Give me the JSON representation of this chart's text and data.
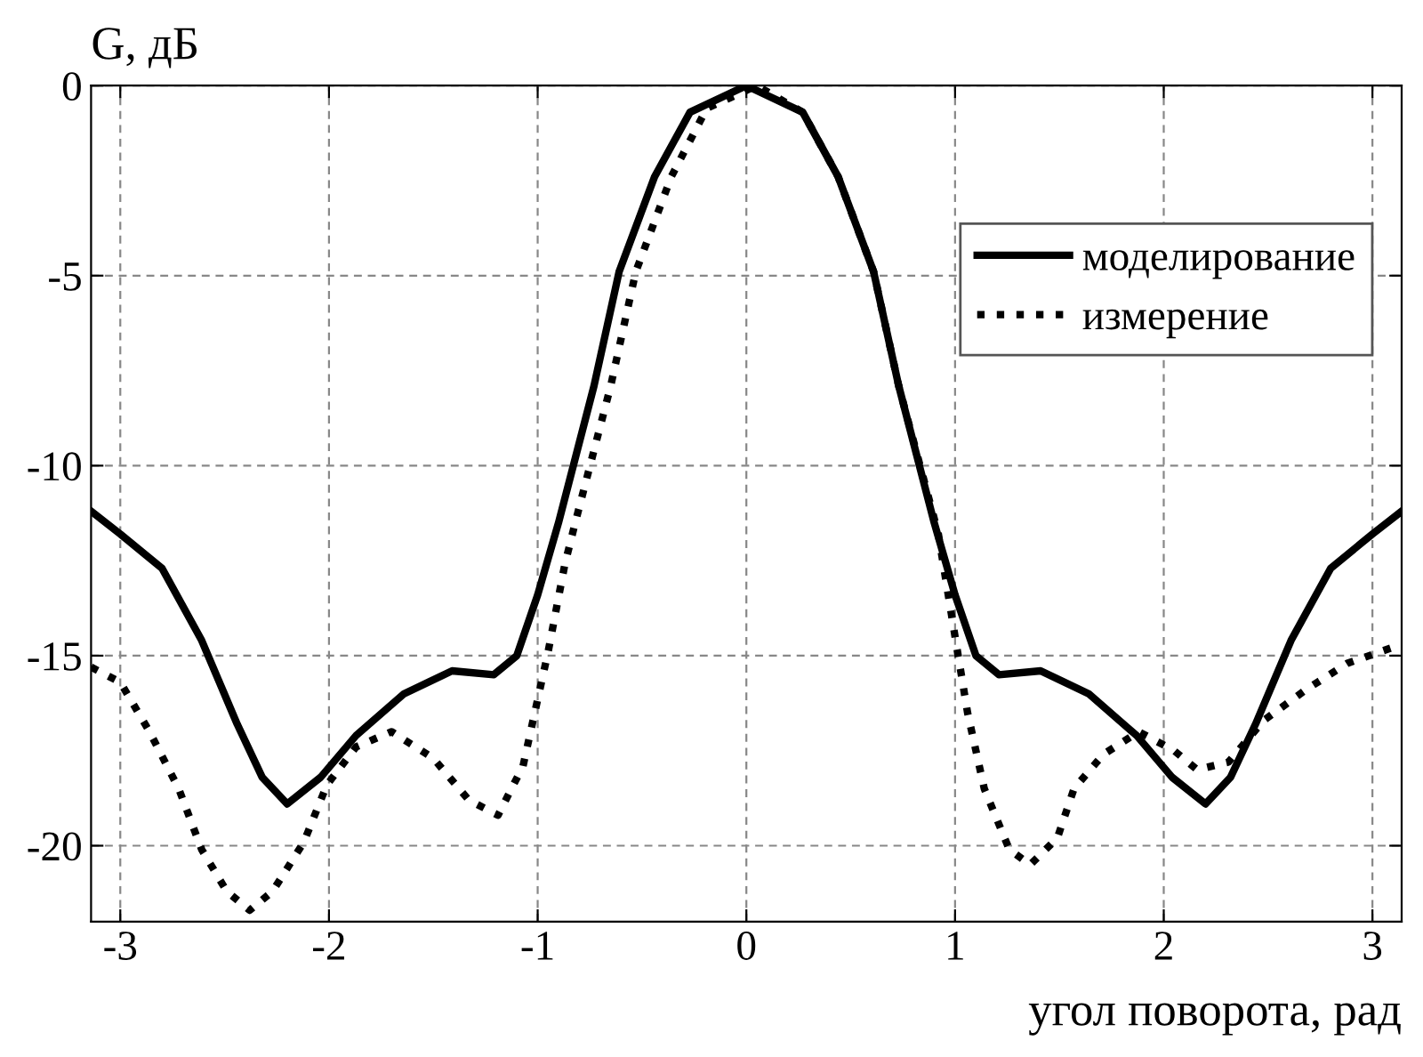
{
  "chart_data": {
    "type": "line",
    "xlabel": "угол поворота, рад",
    "ylabel": "G, дБ",
    "xlim": [
      -3.14,
      3.14
    ],
    "xticks": [
      -3,
      -2,
      -1,
      0,
      1,
      2,
      3
    ],
    "ylim": [
      -22,
      0
    ],
    "yticks": [
      -20,
      -15,
      -10,
      -5,
      0
    ],
    "grid": true,
    "legend": "top right",
    "series": [
      {
        "name": "моделирование",
        "color": "#000000",
        "line_style": "solid",
        "x": [
          -3.14,
          -3.0,
          -2.8,
          -2.61,
          -2.44,
          -2.32,
          -2.2,
          -2.04,
          -1.87,
          -1.64,
          -1.41,
          -1.21,
          -1.1,
          -1.0,
          -0.9,
          -0.73,
          -0.61,
          -0.44,
          -0.27,
          0,
          0.27,
          0.44,
          0.61,
          0.73,
          0.9,
          1.0,
          1.1,
          1.21,
          1.41,
          1.64,
          1.87,
          2.04,
          2.2,
          2.32,
          2.44,
          2.61,
          2.8,
          3.0,
          3.14
        ],
        "values": [
          -11.2,
          -11.8,
          -12.7,
          -14.6,
          -16.8,
          -18.2,
          -18.9,
          -18.2,
          -17.1,
          -16.0,
          -15.4,
          -15.5,
          -15.0,
          -13.4,
          -11.5,
          -7.9,
          -4.9,
          -2.4,
          -0.7,
          0,
          -0.7,
          -2.4,
          -4.9,
          -7.9,
          -11.5,
          -13.4,
          -15.0,
          -15.5,
          -15.4,
          -16.0,
          -17.1,
          -18.2,
          -18.9,
          -18.2,
          -16.8,
          -14.6,
          -12.7,
          -11.8,
          -11.2
        ]
      },
      {
        "name": "измерение",
        "color": "#000000",
        "line_style": "dotted",
        "x": [
          -3.14,
          -3.0,
          -2.86,
          -2.72,
          -2.61,
          -2.49,
          -2.38,
          -2.27,
          -2.12,
          -2.01,
          -1.87,
          -1.7,
          -1.5,
          -1.33,
          -1.19,
          -1.07,
          -0.95,
          -0.87,
          -0.82,
          -0.65,
          -0.53,
          -0.36,
          -0.19,
          0.05,
          0.27,
          0.44,
          0.61,
          0.73,
          0.92,
          1.0,
          1.06,
          1.14,
          1.26,
          1.36,
          1.49,
          1.57,
          1.71,
          1.88,
          2.05,
          2.16,
          2.31,
          2.48,
          2.68,
          2.88,
          3.14
        ],
        "values": [
          -15.3,
          -15.7,
          -17.0,
          -18.5,
          -20.1,
          -21.2,
          -21.7,
          -21.2,
          -19.9,
          -18.4,
          -17.4,
          -17.0,
          -17.7,
          -18.8,
          -19.2,
          -17.9,
          -14.9,
          -12.6,
          -11.5,
          -7.9,
          -4.9,
          -2.4,
          -0.6,
          0,
          -0.7,
          -2.4,
          -4.9,
          -7.9,
          -11.8,
          -14.5,
          -16.5,
          -18.5,
          -20.1,
          -20.5,
          -19.8,
          -18.5,
          -17.6,
          -17.0,
          -17.5,
          -18.0,
          -17.8,
          -16.7,
          -15.9,
          -15.2,
          -14.7
        ]
      }
    ]
  }
}
